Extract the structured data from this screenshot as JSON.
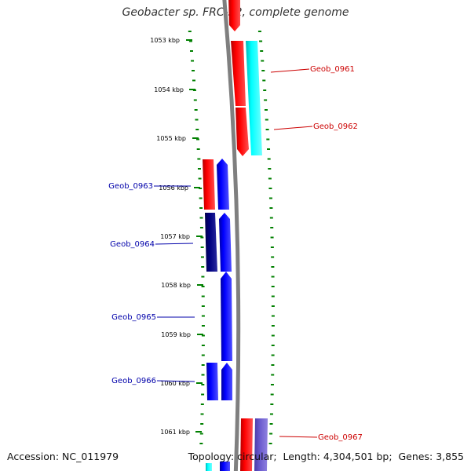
{
  "title": "Geobacter sp. FRC-32, complete genome",
  "footer": {
    "accession_label": "Accession:",
    "accession_value": "NC_011979",
    "topology_label": "Topology:",
    "topology_value": "circular",
    "length_label": "Length:",
    "length_value": "4,304,501 bp",
    "genes_label": "Genes:",
    "genes_value": "3,855"
  },
  "scale": {
    "unit": "kbp",
    "ticks": [
      "1053 kbp",
      "1054 kbp",
      "1055 kbp",
      "1056 kbp",
      "1057 kbp",
      "1058 kbp",
      "1059 kbp",
      "1060 kbp",
      "1061 kbp"
    ]
  },
  "genes": [
    {
      "locus": "Geob_0961",
      "strand": "reverse",
      "labeled": true
    },
    {
      "locus": "Geob_0962",
      "strand": "reverse",
      "labeled": true
    },
    {
      "locus": "Geob_0963",
      "strand": "forward",
      "labeled": true
    },
    {
      "locus": "Geob_0964",
      "strand": "forward",
      "labeled": true
    },
    {
      "locus": "Geob_0965",
      "strand": "forward",
      "labeled": true
    },
    {
      "locus": "Geob_0966",
      "strand": "forward",
      "labeled": true
    },
    {
      "locus": "Geob_0967",
      "strand": "reverse",
      "labeled": true
    }
  ],
  "colors": {
    "reverse_label": "#cc0000",
    "forward_label": "#0000aa",
    "red": "#ff0000",
    "blue": "#0000ff",
    "navy": "#000080",
    "cyan": "#00ffff",
    "slate": "#6a5acd",
    "backbone": "#7f7f7f",
    "tick": "#008000"
  }
}
